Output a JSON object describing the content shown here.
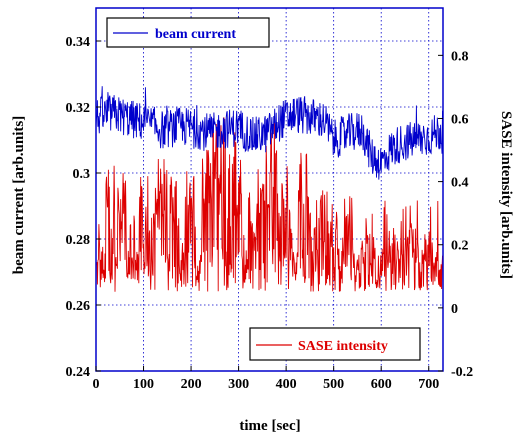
{
  "chart_data": {
    "type": "line",
    "xlabel": "time [sec]",
    "ylabel_left": "beam current [arb.units]",
    "ylabel_right": "SASE intensity [arb.units]",
    "xlim": [
      0,
      730
    ],
    "ylim_left": [
      0.24,
      0.35
    ],
    "ylim_right": [
      -0.2,
      0.95
    ],
    "x_ticks": [
      0,
      100,
      200,
      300,
      400,
      500,
      600,
      700
    ],
    "y_ticks_left": [
      0.24,
      0.26,
      0.28,
      0.3,
      0.32,
      0.34
    ],
    "y_ticks_right": [
      -0.2,
      0,
      0.2,
      0.4,
      0.6,
      0.8
    ],
    "y_tick_labels_left": [
      "0.24",
      "0.26",
      "0.28",
      "0.3",
      "0.32",
      "0.34"
    ],
    "y_tick_labels_right": [
      "-0.2",
      "0",
      "0.2",
      "0.4",
      "0.6",
      "0.8"
    ],
    "grid": true,
    "grid_style": "dotted",
    "series": [
      {
        "name": "beam current",
        "axis": "left",
        "color": "#0000cc",
        "x_step": 1,
        "trend": [
          [
            0,
            0.317
          ],
          [
            40,
            0.318
          ],
          [
            80,
            0.316
          ],
          [
            110,
            0.315
          ],
          [
            140,
            0.313
          ],
          [
            170,
            0.314
          ],
          [
            200,
            0.314
          ],
          [
            240,
            0.312
          ],
          [
            260,
            0.313
          ],
          [
            300,
            0.314
          ],
          [
            330,
            0.311
          ],
          [
            360,
            0.312
          ],
          [
            390,
            0.316
          ],
          [
            420,
            0.318
          ],
          [
            450,
            0.317
          ],
          [
            480,
            0.316
          ],
          [
            500,
            0.31
          ],
          [
            530,
            0.312
          ],
          [
            560,
            0.313
          ],
          [
            580,
            0.305
          ],
          [
            600,
            0.303
          ],
          [
            620,
            0.307
          ],
          [
            640,
            0.309
          ],
          [
            670,
            0.31
          ],
          [
            700,
            0.311
          ],
          [
            730,
            0.313
          ]
        ],
        "noise_amplitude": 0.006,
        "min_value": 0.298,
        "max_value": 0.331
      },
      {
        "name": "SASE intensity",
        "axis": "right",
        "color": "#dd0000",
        "x_step": 1,
        "baseline": 0.12,
        "min_value": 0.0,
        "max_value": 0.62,
        "bursts": [
          [
            30,
            0.48
          ],
          [
            55,
            0.45
          ],
          [
            100,
            0.46
          ],
          [
            125,
            0.44
          ],
          [
            140,
            0.48
          ],
          [
            165,
            0.42
          ],
          [
            200,
            0.44
          ],
          [
            230,
            0.52
          ],
          [
            245,
            0.58
          ],
          [
            255,
            0.6
          ],
          [
            265,
            0.62
          ],
          [
            285,
            0.57
          ],
          [
            300,
            0.5
          ],
          [
            330,
            0.4
          ],
          [
            350,
            0.45
          ],
          [
            365,
            0.57
          ],
          [
            375,
            0.6
          ],
          [
            400,
            0.45
          ],
          [
            435,
            0.55
          ],
          [
            455,
            0.37
          ],
          [
            480,
            0.38
          ],
          [
            500,
            0.32
          ],
          [
            530,
            0.37
          ],
          [
            575,
            0.27
          ],
          [
            625,
            0.27
          ],
          [
            660,
            0.26
          ],
          [
            700,
            0.22
          ]
        ]
      }
    ],
    "legend": [
      {
        "label": "beam current",
        "color": "#0000cc",
        "placement": "top-left"
      },
      {
        "label": "SASE intensity",
        "color": "#dd0000",
        "placement": "bottom-right"
      }
    ]
  }
}
